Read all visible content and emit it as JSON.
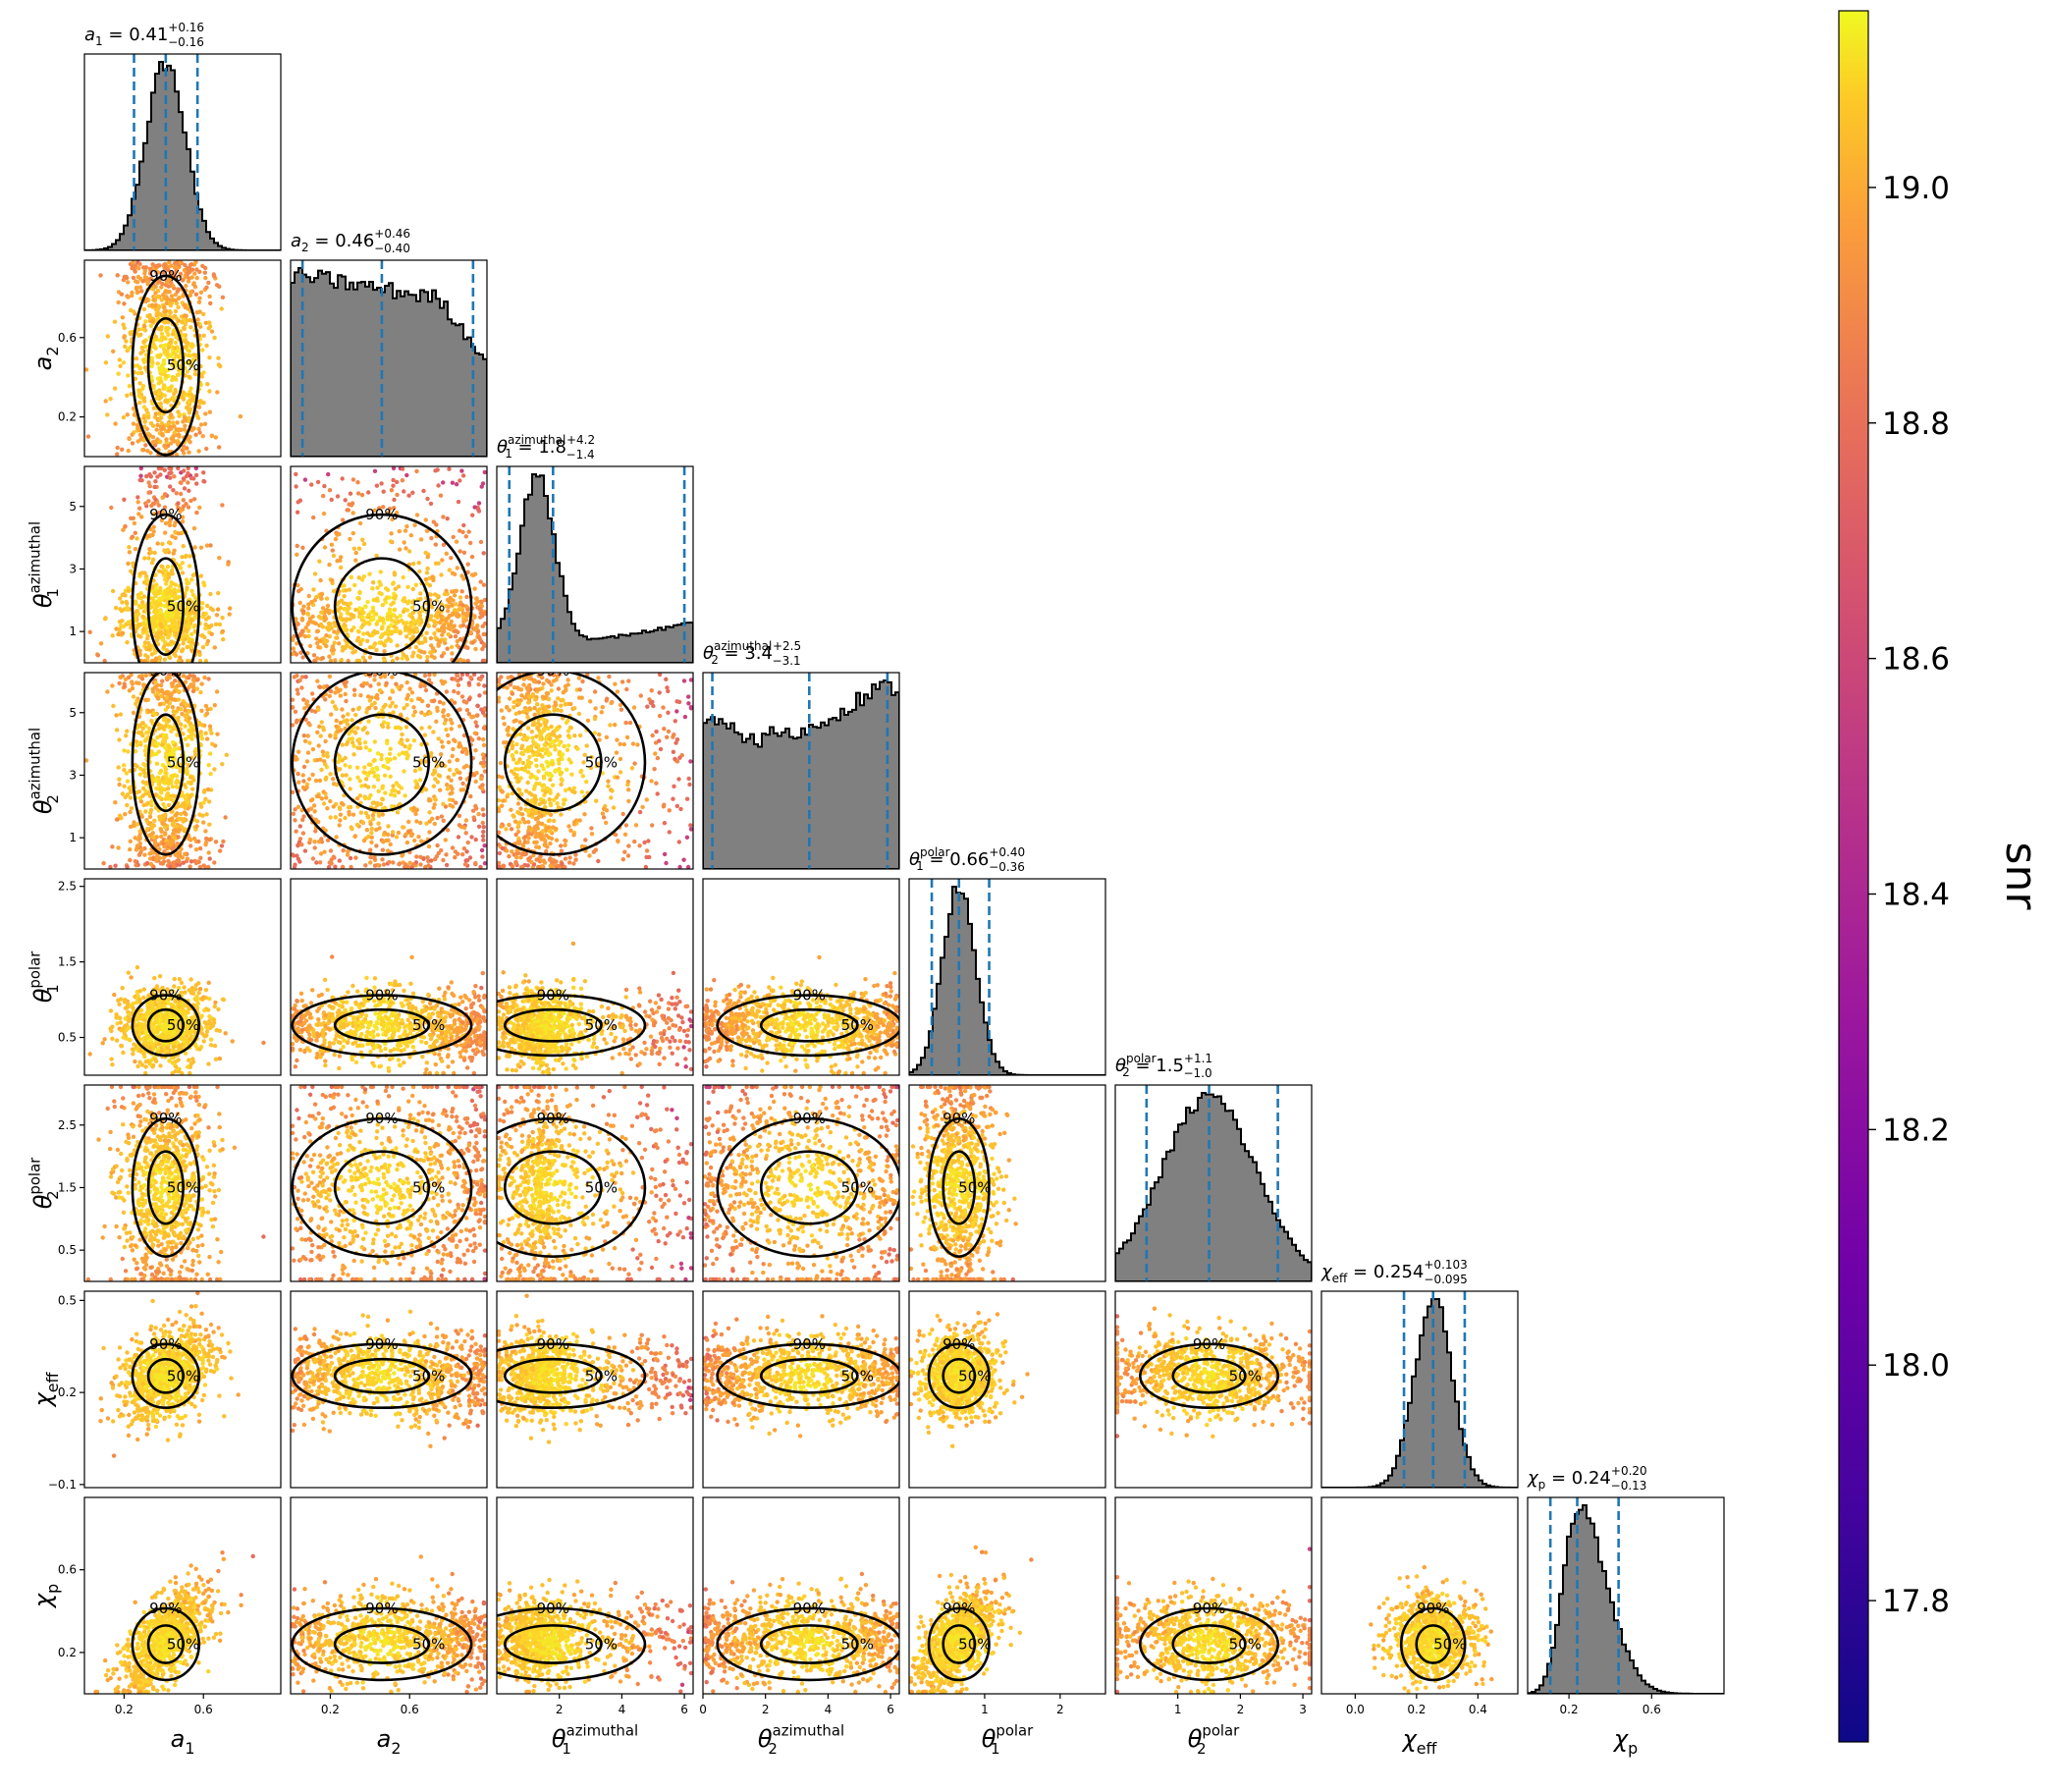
{
  "chart_data": {
    "type": "scatter",
    "title": "",
    "parameters": [
      {
        "key": "a_1",
        "label": "a",
        "sub": "1",
        "sup": "",
        "range": [
          0.0,
          0.99
        ],
        "ticks": [
          {
            "v": 0.2,
            "t": "0.2"
          },
          {
            "v": 0.6,
            "t": "0.6"
          }
        ],
        "summary": {
          "median": "0.41",
          "plus": "+0.16",
          "minus": "−0.16"
        },
        "quantiles": [
          0.25,
          0.41,
          0.57
        ],
        "dist": "normal",
        "mu": 0.41,
        "sigma": 0.1
      },
      {
        "key": "a_2",
        "label": "a",
        "sub": "2",
        "sup": "",
        "range": [
          0.0,
          0.99
        ],
        "ticks": [
          {
            "v": 0.2,
            "t": "0.2"
          },
          {
            "v": 0.6,
            "t": "0.6"
          }
        ],
        "summary": {
          "median": "0.46",
          "plus": "+0.46",
          "minus": "−0.40"
        },
        "quantiles": [
          0.06,
          0.46,
          0.92
        ],
        "dist": "uniform_falling"
      },
      {
        "key": "theta_1_azimuthal",
        "label": "θ",
        "sub": "1",
        "sup": "azimuthal",
        "range": [
          0.0,
          6.28
        ],
        "ticks": [
          {
            "v": 1,
            "t": "1"
          },
          {
            "v": 3,
            "t": "3"
          },
          {
            "v": 5,
            "t": "5"
          }
        ],
        "xticks": [
          {
            "v": 2,
            "t": "2"
          },
          {
            "v": 4,
            "t": "4"
          },
          {
            "v": 6,
            "t": "6"
          }
        ],
        "summary": {
          "median": "1.8",
          "plus": "+4.2",
          "minus": "−1.4"
        },
        "quantiles": [
          0.4,
          1.8,
          6.0
        ],
        "dist": "bimodal"
      },
      {
        "key": "theta_2_azimuthal",
        "label": "θ",
        "sub": "2",
        "sup": "azimuthal",
        "range": [
          0.0,
          6.28
        ],
        "ticks": [
          {
            "v": 1,
            "t": "1"
          },
          {
            "v": 3,
            "t": "3"
          },
          {
            "v": 5,
            "t": "5"
          }
        ],
        "xticks": [
          {
            "v": 0,
            "t": "0"
          },
          {
            "v": 2,
            "t": "2"
          },
          {
            "v": 4,
            "t": "4"
          },
          {
            "v": 6,
            "t": "6"
          }
        ],
        "summary": {
          "median": "3.4",
          "plus": "+2.5",
          "minus": "−3.1"
        },
        "quantiles": [
          0.3,
          3.4,
          5.9
        ],
        "dist": "wavy"
      },
      {
        "key": "theta_1_polar",
        "label": "θ",
        "sub": "1",
        "sup": "polar",
        "range": [
          0.0,
          2.6
        ],
        "ticks": [
          {
            "v": 0.5,
            "t": "0.5"
          },
          {
            "v": 1.5,
            "t": "1.5"
          },
          {
            "v": 2.5,
            "t": "2.5"
          }
        ],
        "xticks": [
          {
            "v": 1,
            "t": "1"
          },
          {
            "v": 2,
            "t": "2"
          }
        ],
        "summary": {
          "median": "0.66",
          "plus": "+0.40",
          "minus": "−0.36"
        },
        "quantiles": [
          0.3,
          0.66,
          1.06
        ],
        "dist": "normal",
        "mu": 0.66,
        "sigma": 0.22
      },
      {
        "key": "theta_2_polar",
        "label": "θ",
        "sub": "2",
        "sup": "polar",
        "range": [
          0.0,
          3.14
        ],
        "ticks": [
          {
            "v": 0.5,
            "t": "0.5"
          },
          {
            "v": 1.5,
            "t": "1.5"
          },
          {
            "v": 2.5,
            "t": "2.5"
          }
        ],
        "xticks": [
          {
            "v": 1,
            "t": "1"
          },
          {
            "v": 2,
            "t": "2"
          },
          {
            "v": 3,
            "t": "3"
          }
        ],
        "summary": {
          "median": "1.5",
          "plus": "+1.1",
          "minus": "−1.0"
        },
        "quantiles": [
          0.5,
          1.5,
          2.6
        ],
        "dist": "normal",
        "mu": 1.5,
        "sigma": 0.75
      },
      {
        "key": "chi_eff",
        "label": "χ",
        "sub": "eff",
        "sup": "",
        "range": [
          -0.11,
          0.53
        ],
        "ticks": [
          {
            "v": -0.1,
            "t": "−0.1"
          },
          {
            "v": 0.2,
            "t": "0.2"
          },
          {
            "v": 0.5,
            "t": "0.5"
          }
        ],
        "xticks": [
          {
            "v": 0.0,
            "t": "0.0"
          },
          {
            "v": 0.2,
            "t": "0.2"
          },
          {
            "v": 0.4,
            "t": "0.4"
          }
        ],
        "summary": {
          "median": "0.254",
          "plus": "+0.103",
          "minus": "−0.095"
        },
        "quantiles": [
          0.159,
          0.254,
          0.357
        ],
        "dist": "normal",
        "mu": 0.254,
        "sigma": 0.06
      },
      {
        "key": "chi_p",
        "label": "χ",
        "sub": "p",
        "sup": "",
        "range": [
          0.0,
          0.95
        ],
        "ticks": [
          {
            "v": 0.2,
            "t": "0.2"
          },
          {
            "v": 0.6,
            "t": "0.6"
          }
        ],
        "summary": {
          "median": "0.24",
          "plus": "+0.20",
          "minus": "−0.13"
        },
        "quantiles": [
          0.11,
          0.24,
          0.44
        ],
        "dist": "skewed",
        "mu": 0.24,
        "sigma": 0.1
      }
    ],
    "contour_levels": [
      "50%",
      "90%"
    ],
    "colorbar": {
      "label": "snr",
      "range": [
        17.68,
        19.15
      ],
      "ticks": [
        {
          "v": 17.8,
          "t": "17.8"
        },
        {
          "v": 18.0,
          "t": "18.0"
        },
        {
          "v": 18.2,
          "t": "18.2"
        },
        {
          "v": 18.4,
          "t": "18.4"
        },
        {
          "v": 18.6,
          "t": "18.6"
        },
        {
          "v": 18.8,
          "t": "18.8"
        },
        {
          "v": 19.0,
          "t": "19.0"
        }
      ],
      "colormap": "plasma"
    },
    "colors": {
      "histogram": "#808080",
      "quantile_line": "#1f77b4",
      "contour": "#000000"
    }
  }
}
